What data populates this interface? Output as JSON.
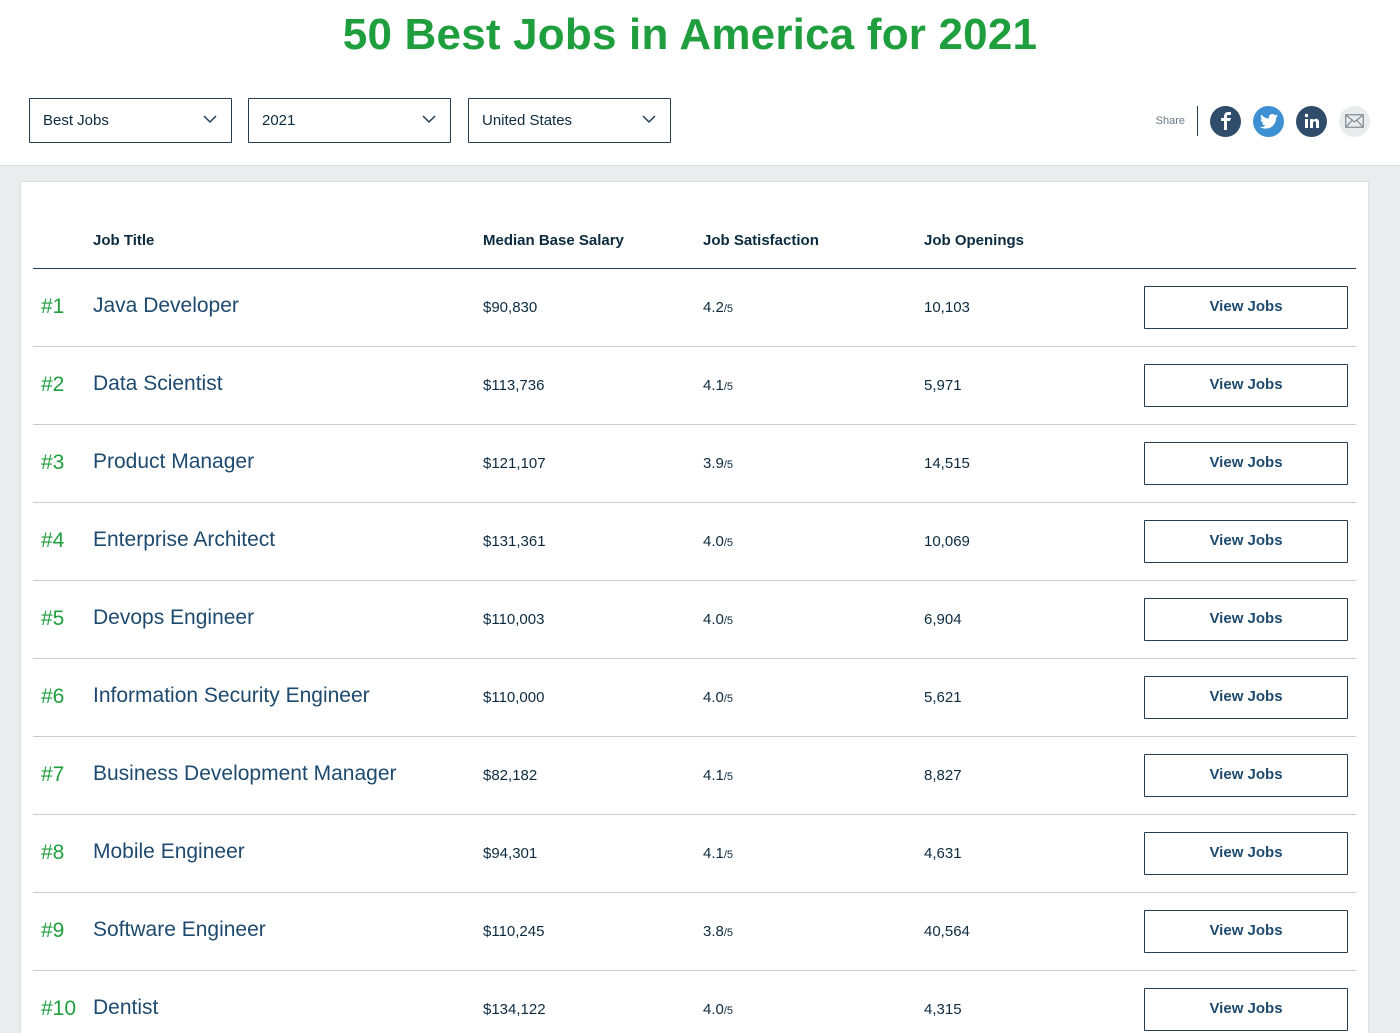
{
  "page": {
    "title": "50 Best Jobs in America for 2021",
    "accent_color": "#1e9e3c"
  },
  "filters": {
    "list": "Best Jobs",
    "year": "2021",
    "country": "United States"
  },
  "share": {
    "label": "Share",
    "icons": [
      "facebook-icon",
      "twitter-icon",
      "linkedin-icon",
      "email-icon"
    ]
  },
  "table": {
    "headers": {
      "job_title": "Job Title",
      "salary": "Median Base Salary",
      "satisfaction": "Job Satisfaction",
      "openings": "Job Openings"
    },
    "button_label": "View Jobs",
    "rows": [
      {
        "rank": "#1",
        "title": "Java Developer",
        "salary": "$90,830",
        "satisfaction": "4.2",
        "out_of": "/5",
        "openings": "10,103"
      },
      {
        "rank": "#2",
        "title": "Data Scientist",
        "salary": "$113,736",
        "satisfaction": "4.1",
        "out_of": "/5",
        "openings": "5,971"
      },
      {
        "rank": "#3",
        "title": "Product Manager",
        "salary": "$121,107",
        "satisfaction": "3.9",
        "out_of": "/5",
        "openings": "14,515"
      },
      {
        "rank": "#4",
        "title": "Enterprise Architect",
        "salary": "$131,361",
        "satisfaction": "4.0",
        "out_of": "/5",
        "openings": "10,069"
      },
      {
        "rank": "#5",
        "title": "Devops Engineer",
        "salary": "$110,003",
        "satisfaction": "4.0",
        "out_of": "/5",
        "openings": "6,904"
      },
      {
        "rank": "#6",
        "title": "Information Security Engineer",
        "salary": "$110,000",
        "satisfaction": "4.0",
        "out_of": "/5",
        "openings": "5,621"
      },
      {
        "rank": "#7",
        "title": "Business Development Manager",
        "salary": "$82,182",
        "satisfaction": "4.1",
        "out_of": "/5",
        "openings": "8,827"
      },
      {
        "rank": "#8",
        "title": "Mobile Engineer",
        "salary": "$94,301",
        "satisfaction": "4.1",
        "out_of": "/5",
        "openings": "4,631"
      },
      {
        "rank": "#9",
        "title": "Software Engineer",
        "salary": "$110,245",
        "satisfaction": "3.8",
        "out_of": "/5",
        "openings": "40,564"
      },
      {
        "rank": "#10",
        "title": "Dentist",
        "salary": "$134,122",
        "satisfaction": "4.0",
        "out_of": "/5",
        "openings": "4,315"
      }
    ]
  }
}
